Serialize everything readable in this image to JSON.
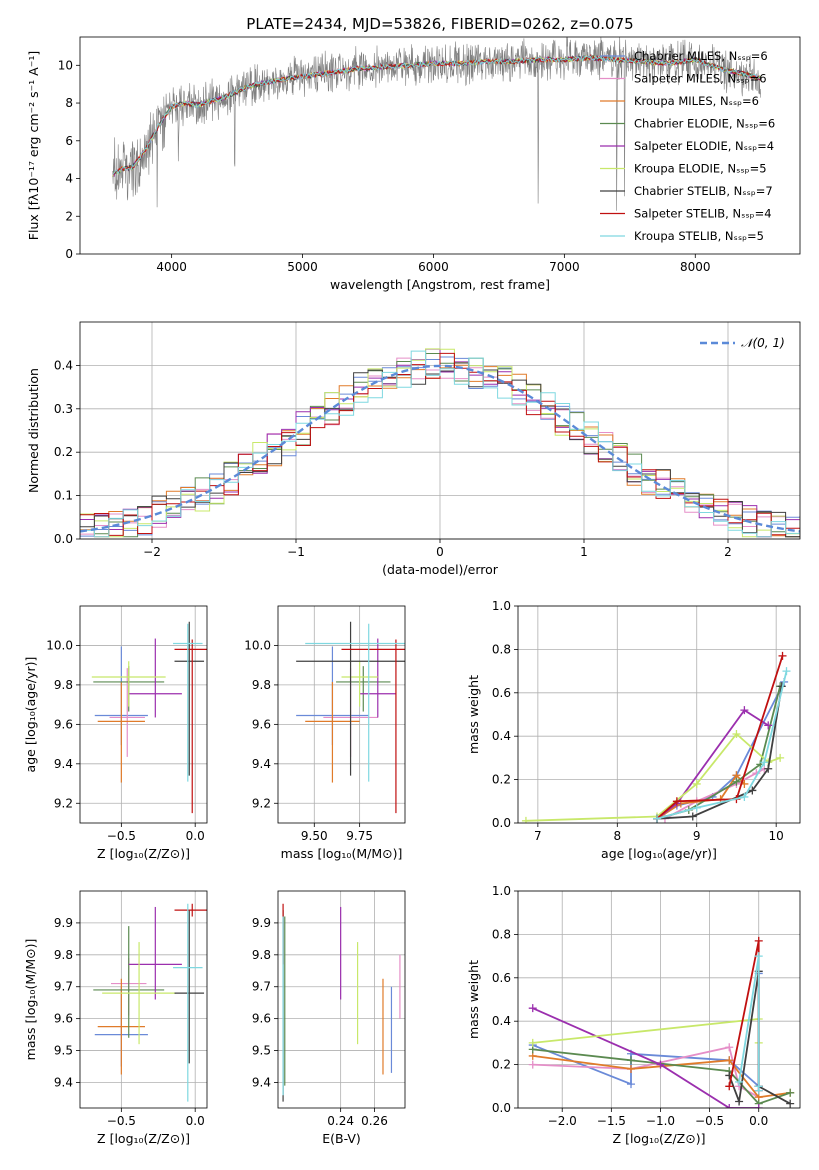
{
  "figure_title": "PLATE=2434, MJD=53826, FIBERID=0262, z=0.075",
  "colors": {
    "data": "#808080",
    "chabrier_miles": "#6a8ad8",
    "salpeter_miles": "#e58fc8",
    "kroupa_miles": "#e07b2a",
    "chabrier_elodie": "#5b8a50",
    "salpeter_elodie": "#9b2fae",
    "kroupa_elodie": "#c8e86a",
    "chabrier_stelib": "#404040",
    "salpeter_stelib": "#c01010",
    "kroupa_stelib": "#7fd8e0",
    "gaussian": "#5b8ad8",
    "grid": "#b0b0b0"
  },
  "chart_data": [
    {
      "type": "line",
      "panel": "spectrum",
      "xlabel": "wavelength [Angstrom, rest frame]",
      "ylabel": "Flux [fλ10⁻¹⁷ erg cm⁻² s⁻¹ A⁻¹]",
      "xlim": [
        3300,
        8800
      ],
      "ylim": [
        0,
        11.5
      ],
      "xticks": [
        "4000",
        "5000",
        "6000",
        "7000",
        "8000"
      ],
      "yticks": [
        "0",
        "2",
        "4",
        "6",
        "8",
        "10"
      ],
      "legend_position": "right",
      "legend": [
        "Chabrier MILES, Nₛₛₚ=6",
        "Salpeter MILES, Nₛₛₚ=6",
        "Kroupa MILES, Nₛₛₚ=6",
        "Chabrier ELODIE, Nₛₛₚ=6",
        "Salpeter ELODIE, Nₛₛₚ=4",
        "Kroupa ELODIE, Nₛₛₚ=5",
        "Chabrier STELIB, Nₛₛₚ=7",
        "Salpeter STELIB, Nₛₛₚ=4",
        "Kroupa STELIB, Nₛₛₚ=5"
      ],
      "continuum": {
        "x": [
          3550,
          3620,
          3700,
          3800,
          3900,
          4000,
          4100,
          4200,
          4400,
          4600,
          4800,
          5000,
          5200,
          5400,
          5600,
          5800,
          6000,
          6200,
          6400,
          6600,
          6800,
          7000,
          7200,
          7400,
          7600,
          7800,
          8000,
          8200,
          8400,
          8500
        ],
        "y": [
          4.2,
          4.5,
          4.6,
          5.5,
          6.8,
          7.8,
          8.0,
          7.9,
          8.3,
          8.9,
          9.2,
          9.4,
          9.6,
          9.8,
          9.9,
          10.0,
          10.1,
          10.1,
          10.2,
          10.2,
          10.3,
          10.3,
          10.4,
          10.3,
          10.2,
          10.1,
          10.3,
          9.8,
          9.5,
          9.3
        ]
      }
    },
    {
      "type": "bar",
      "panel": "residual_histogram",
      "xlabel": "(data-model)/error",
      "ylabel": "Normed distribution",
      "xlim": [
        -2.5,
        2.5
      ],
      "ylim": [
        0,
        0.5
      ],
      "xticks": [
        "−2",
        "−1",
        "0",
        "1",
        "2"
      ],
      "yticks": [
        "0.0",
        "0.1",
        "0.2",
        "0.3",
        "0.4"
      ],
      "gaussian_label": "𝒩(0, 1)",
      "bin_width": 0.1
    },
    {
      "type": "scatter",
      "panel": "age_vs_Z",
      "xlabel": "Z [log₁₀(Z/Z⊙)]",
      "ylabel": "age  [log₁₀(age/yr)]",
      "xlim": [
        -0.78,
        0.08
      ],
      "ylim": [
        9.1,
        10.2
      ],
      "xticks": [
        "−0.5",
        "0.0"
      ],
      "yticks": [
        "9.2",
        "9.4",
        "9.6",
        "9.8",
        "10.0"
      ],
      "points": [
        {
          "model": "chabrier_miles",
          "x": -0.5,
          "y": 9.645,
          "xerr": 0.18,
          "yerr": [
            0.15,
            0.35
          ]
        },
        {
          "model": "salpeter_miles",
          "x": -0.46,
          "y": 9.635,
          "xerr": 0.12,
          "yerr": [
            0.2,
            0.25
          ]
        },
        {
          "model": "kroupa_miles",
          "x": -0.5,
          "y": 9.615,
          "xerr": 0.16,
          "yerr": [
            0.31,
            0.2
          ]
        },
        {
          "model": "chabrier_elodie",
          "x": -0.45,
          "y": 9.815,
          "xerr": 0.24,
          "yerr": [
            0.15,
            0.08
          ]
        },
        {
          "model": "salpeter_elodie",
          "x": -0.27,
          "y": 9.755,
          "xerr": 0.18,
          "yerr": [
            0.12,
            0.28
          ]
        },
        {
          "model": "kroupa_elodie",
          "x": -0.45,
          "y": 9.84,
          "xerr": 0.25,
          "yerr": [
            0.15,
            0.08
          ]
        },
        {
          "model": "chabrier_stelib",
          "x": -0.04,
          "y": 9.92,
          "xerr": 0.1,
          "yerr": [
            0.58,
            0.2
          ]
        },
        {
          "model": "salpeter_stelib",
          "x": -0.02,
          "y": 9.98,
          "xerr": 0.12,
          "yerr": [
            0.83,
            0.05
          ]
        },
        {
          "model": "kroupa_stelib",
          "x": -0.05,
          "y": 10.01,
          "xerr": 0.1,
          "yerr": [
            0.7,
            0.1
          ]
        }
      ]
    },
    {
      "type": "scatter",
      "panel": "age_vs_mass",
      "xlabel": "mass [log₁₀(M/M⊙)]",
      "ylabel": "",
      "xlim": [
        9.3,
        10.0
      ],
      "ylim": [
        9.1,
        10.2
      ],
      "xticks": [
        "9.50",
        "9.75"
      ],
      "yticks": [
        "9.2",
        "9.4",
        "9.6",
        "9.8",
        "10.0"
      ],
      "points": [
        {
          "model": "chabrier_miles",
          "x": 9.6,
          "y": 9.645,
          "xerr": 0.2,
          "yerr": [
            0.15,
            0.35
          ]
        },
        {
          "model": "salpeter_miles",
          "x": 9.7,
          "y": 9.635,
          "xerr": 0.15,
          "yerr": [
            0.2,
            0.25
          ]
        },
        {
          "model": "kroupa_miles",
          "x": 9.6,
          "y": 9.615,
          "xerr": 0.15,
          "yerr": [
            0.31,
            0.2
          ]
        },
        {
          "model": "chabrier_elodie",
          "x": 9.77,
          "y": 9.815,
          "xerr": 0.15,
          "yerr": [
            0.15,
            0.08
          ]
        },
        {
          "model": "salpeter_elodie",
          "x": 9.85,
          "y": 9.755,
          "xerr": 0.1,
          "yerr": [
            0.12,
            0.28
          ]
        },
        {
          "model": "kroupa_elodie",
          "x": 9.75,
          "y": 9.84,
          "xerr": 0.1,
          "yerr": [
            0.15,
            0.08
          ]
        },
        {
          "model": "chabrier_stelib",
          "x": 9.7,
          "y": 9.92,
          "xerr": 0.3,
          "yerr": [
            0.58,
            0.2
          ]
        },
        {
          "model": "salpeter_stelib",
          "x": 9.95,
          "y": 9.98,
          "xerr": 0.3,
          "yerr": [
            0.83,
            0.05
          ]
        },
        {
          "model": "kroupa_stelib",
          "x": 9.8,
          "y": 10.01,
          "xerr": 0.35,
          "yerr": [
            0.7,
            0.1
          ]
        }
      ]
    },
    {
      "type": "line",
      "panel": "mass_weight_vs_age",
      "xlabel": "age  [log₁₀(age/yr)]",
      "ylabel": "mass weight",
      "xlim": [
        6.75,
        10.3
      ],
      "ylim": [
        0,
        1
      ],
      "xticks": [
        "7",
        "8",
        "9",
        "10"
      ],
      "yticks": [
        "0.0",
        "0.2",
        "0.4",
        "0.6",
        "0.8",
        "1.0"
      ],
      "series": [
        {
          "model": "chabrier_miles",
          "x": [
            8.5,
            8.75,
            9.2,
            9.5,
            10.1
          ],
          "y": [
            0.02,
            0.08,
            0.12,
            0.22,
            0.65
          ]
        },
        {
          "model": "salpeter_miles",
          "x": [
            8.6,
            9.0,
            9.5,
            9.75,
            9.85
          ],
          "y": [
            0.02,
            0.1,
            0.18,
            0.23,
            0.25
          ]
        },
        {
          "model": "kroupa_miles",
          "x": [
            8.5,
            8.8,
            9.3,
            9.5,
            9.6
          ],
          "y": [
            0.02,
            0.09,
            0.11,
            0.22,
            0.18
          ]
        },
        {
          "model": "chabrier_elodie",
          "x": [
            8.5,
            8.9,
            9.5,
            9.8,
            10.05
          ],
          "y": [
            0.02,
            0.06,
            0.19,
            0.27,
            0.63
          ]
        },
        {
          "model": "salpeter_elodie",
          "x": [
            8.5,
            8.75,
            9.6,
            9.9
          ],
          "y": [
            0.02,
            0.09,
            0.52,
            0.45
          ]
        },
        {
          "model": "kroupa_elodie",
          "x": [
            6.85,
            8.5,
            9.0,
            9.5,
            9.9,
            10.05
          ],
          "y": [
            0.01,
            0.03,
            0.18,
            0.41,
            0.28,
            0.3
          ]
        },
        {
          "model": "chabrier_stelib",
          "x": [
            8.5,
            8.95,
            9.7,
            9.9,
            10.07
          ],
          "y": [
            0.02,
            0.03,
            0.15,
            0.25,
            0.63
          ]
        },
        {
          "model": "salpeter_stelib",
          "x": [
            8.5,
            8.75,
            9.5,
            10.08
          ],
          "y": [
            0.02,
            0.1,
            0.11,
            0.77
          ]
        },
        {
          "model": "kroupa_stelib",
          "x": [
            8.5,
            9.0,
            9.6,
            9.85,
            10.13
          ],
          "y": [
            0.02,
            0.07,
            0.12,
            0.28,
            0.7
          ]
        }
      ]
    },
    {
      "type": "scatter",
      "panel": "mass_vs_Z",
      "xlabel": "Z [log₁₀(Z/Z⊙)]",
      "ylabel": "mass [log₁₀(M/M⊙)]",
      "xlim": [
        -0.78,
        0.08
      ],
      "ylim": [
        9.32,
        10.0
      ],
      "xticks": [
        "−0.5",
        "0.0"
      ],
      "yticks": [
        "9.4",
        "9.5",
        "9.6",
        "9.7",
        "9.8",
        "9.9"
      ],
      "points": [
        {
          "model": "chabrier_miles",
          "x": -0.5,
          "y": 9.55,
          "xerr": 0.18,
          "yerr": [
            0.1,
            0.15
          ]
        },
        {
          "model": "salpeter_miles",
          "x": -0.45,
          "y": 9.71,
          "xerr": 0.12,
          "yerr": [
            0.1,
            0.08
          ]
        },
        {
          "model": "kroupa_miles",
          "x": -0.5,
          "y": 9.575,
          "xerr": 0.16,
          "yerr": [
            0.15,
            0.15
          ]
        },
        {
          "model": "chabrier_elodie",
          "x": -0.45,
          "y": 9.69,
          "xerr": 0.24,
          "yerr": [
            0.15,
            0.2
          ]
        },
        {
          "model": "salpeter_elodie",
          "x": -0.27,
          "y": 9.77,
          "xerr": 0.18,
          "yerr": [
            0.11,
            0.18
          ]
        },
        {
          "model": "kroupa_elodie",
          "x": -0.38,
          "y": 9.68,
          "xerr": 0.25,
          "yerr": [
            0.16,
            0.16
          ]
        },
        {
          "model": "chabrier_stelib",
          "x": -0.04,
          "y": 9.68,
          "xerr": 0.1,
          "yerr": [
            0.22,
            0.26
          ]
        },
        {
          "model": "salpeter_stelib",
          "x": -0.02,
          "y": 9.94,
          "xerr": 0.12,
          "yerr": [
            0.02,
            0.02
          ]
        },
        {
          "model": "kroupa_stelib",
          "x": -0.05,
          "y": 9.76,
          "xerr": 0.1,
          "yerr": [
            0.42,
            0.2
          ]
        }
      ]
    },
    {
      "type": "scatter",
      "panel": "mass_vs_ebv",
      "xlabel": "E(B-V)",
      "ylabel": "",
      "xlim": [
        0.203,
        0.278
      ],
      "ylim": [
        9.32,
        10.0
      ],
      "xticks": [
        "0.24",
        "0.26"
      ],
      "yticks": [
        "9.4",
        "9.5",
        "9.6",
        "9.7",
        "9.8",
        "9.9"
      ],
      "points": [
        {
          "model": "chabrier_miles",
          "x": 0.27,
          "y": 9.55,
          "yerr": [
            0.12,
            0.15
          ]
        },
        {
          "model": "salpeter_miles",
          "x": 0.275,
          "y": 9.7,
          "yerr": [
            0.1,
            0.1
          ]
        },
        {
          "model": "kroupa_miles",
          "x": 0.265,
          "y": 9.575,
          "yerr": [
            0.15,
            0.15
          ]
        },
        {
          "model": "chabrier_elodie",
          "x": 0.207,
          "y": 9.69,
          "yerr": [
            0.3,
            0.23
          ]
        },
        {
          "model": "salpeter_elodie",
          "x": 0.24,
          "y": 9.8,
          "yerr": [
            0.14,
            0.15
          ]
        },
        {
          "model": "kroupa_elodie",
          "x": 0.25,
          "y": 9.68,
          "yerr": [
            0.16,
            0.16
          ]
        },
        {
          "model": "chabrier_stelib",
          "x": 0.206,
          "y": 9.68,
          "yerr": [
            0.34,
            0.26
          ]
        },
        {
          "model": "salpeter_stelib",
          "x": 0.206,
          "y": 9.87,
          "yerr": [
            0.1,
            0.09
          ]
        },
        {
          "model": "kroupa_stelib",
          "x": 0.206,
          "y": 9.62,
          "yerr": [
            0.26,
            0.3
          ]
        }
      ]
    },
    {
      "type": "line",
      "panel": "mass_weight_vs_Z",
      "xlabel": "Z [log₁₀(Z/Z⊙)]",
      "ylabel": "mass weight",
      "xlim": [
        -2.45,
        0.42
      ],
      "ylim": [
        0,
        1
      ],
      "xticks": [
        "−2.0",
        "−1.5",
        "−1.0",
        "−0.5",
        "0.0"
      ],
      "yticks": [
        "0.0",
        "0.2",
        "0.4",
        "0.6",
        "0.8",
        "1.0"
      ],
      "series": [
        {
          "model": "chabrier_miles",
          "x": [
            -2.3,
            -1.3,
            -1.3,
            -0.3,
            0.0,
            0.0
          ],
          "y": [
            0.29,
            0.11,
            0.25,
            0.22,
            0.1,
            0.62
          ]
        },
        {
          "model": "salpeter_miles",
          "x": [
            -2.3,
            -1.3,
            -0.3,
            -0.2,
            0.0
          ],
          "y": [
            0.2,
            0.18,
            0.28,
            0.1,
            0.05
          ]
        },
        {
          "model": "kroupa_miles",
          "x": [
            -2.3,
            -1.3,
            -0.3,
            0.0,
            0.32
          ],
          "y": [
            0.24,
            0.18,
            0.22,
            0.05,
            0.07
          ]
        },
        {
          "model": "chabrier_elodie",
          "x": [
            -2.3,
            -1.3,
            -0.3,
            0.0,
            0.32
          ],
          "y": [
            0.27,
            0.22,
            0.17,
            0.02,
            0.07
          ]
        },
        {
          "model": "salpeter_elodie",
          "x": [
            -2.3,
            -1.0,
            -0.3,
            0.0
          ],
          "y": [
            0.46,
            0.2,
            0.0,
            0.0
          ]
        },
        {
          "model": "kroupa_elodie",
          "x": [
            -2.3,
            0.0,
            0.0
          ],
          "y": [
            0.3,
            0.41,
            0.3
          ]
        },
        {
          "model": "chabrier_stelib",
          "x": [
            -0.3,
            -0.2,
            0.0,
            0.0,
            0.32
          ],
          "y": [
            0.15,
            0.03,
            0.63,
            0.1,
            0.02
          ]
        },
        {
          "model": "salpeter_stelib",
          "x": [
            -0.3,
            0.0,
            0.0,
            0.0
          ],
          "y": [
            0.1,
            0.77,
            0.1,
            0.08
          ]
        },
        {
          "model": "kroupa_stelib",
          "x": [
            -0.2,
            0.0,
            0.0,
            0.0
          ],
          "y": [
            0.12,
            0.7,
            0.1,
            0.08
          ]
        }
      ]
    }
  ]
}
